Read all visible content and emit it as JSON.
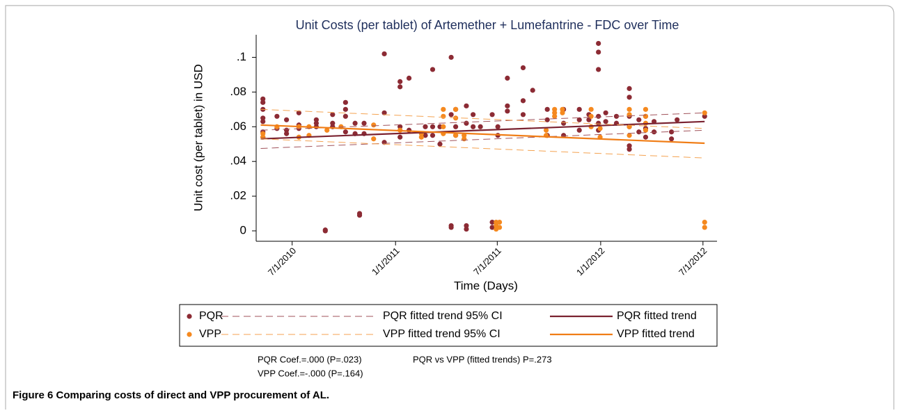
{
  "chart_data": {
    "type": "scatter",
    "title": "Unit Costs (per tablet) of Artemether + Lumefantrine - FDC over Time",
    "y_label": "Unit cost (per tablet) in USD",
    "x_label": "Time (Days)",
    "notes": [
      "PQR Coef.=.000 (P=.023)",
      "VPP Coef.=-.000 (P=.164)",
      "PQR vs VPP (fitted trends) P=.273"
    ],
    "caption": "Figure 6 Comparing costs of direct and VPP procurement of AL.",
    "xlim": [
      "2010-04-28",
      "2012-07-26"
    ],
    "xticks": [
      {
        "value": "2010-07-01",
        "label": "7/1/2010"
      },
      {
        "value": "2011-01-01",
        "label": "1/1/2011"
      },
      {
        "value": "2011-07-01",
        "label": "7/1/2011"
      },
      {
        "value": "2012-01-01",
        "label": "1/1/2012"
      },
      {
        "value": "2012-07-01",
        "label": "7/1/2012"
      }
    ],
    "ylim": [
      -0.006,
      0.113
    ],
    "yticks": [
      0,
      {
        "value": 0.02,
        "label": ".02"
      },
      {
        "value": 0.04,
        "label": ".04"
      },
      {
        "value": 0.06,
        "label": ".06"
      },
      {
        "value": 0.08,
        "label": ".08"
      },
      {
        "value": 0.1,
        "label": ".1"
      }
    ],
    "grid": false,
    "legend": "bottom",
    "series": [
      {
        "name": "PQR",
        "kind": "scatter",
        "color": "#8c2b34",
        "x": [
          "2010-05-10",
          "2010-05-10",
          "2010-05-10",
          "2010-05-10",
          "2010-05-10",
          "2010-05-10",
          "2010-05-10",
          "2010-06-04",
          "2010-06-04",
          "2010-06-21",
          "2010-06-21",
          "2010-06-21",
          "2010-07-13",
          "2010-07-13",
          "2010-07-13",
          "2010-08-13",
          "2010-08-13",
          "2010-08-13",
          "2010-08-29",
          "2010-08-29",
          "2010-09-11",
          "2010-09-11",
          "2010-09-11",
          "2010-10-04",
          "2010-10-04",
          "2010-10-04",
          "2010-10-04",
          "2010-10-21",
          "2010-10-21",
          "2010-10-29",
          "2010-10-29",
          "2010-11-06",
          "2010-11-06",
          "2010-12-12",
          "2010-12-12",
          "2010-12-12",
          "2011-01-09",
          "2011-01-09",
          "2011-01-09",
          "2011-01-09",
          "2011-01-25",
          "2011-01-25",
          "2011-02-23",
          "2011-02-23",
          "2011-03-08",
          "2011-03-08",
          "2011-03-08",
          "2011-03-21",
          "2011-03-21",
          "2011-04-10",
          "2011-04-10",
          "2011-04-10",
          "2011-04-10",
          "2011-04-18",
          "2011-04-18",
          "2011-04-18",
          "2011-05-07",
          "2011-05-07",
          "2011-05-07",
          "2011-05-07",
          "2011-05-19",
          "2011-05-19",
          "2011-06-01",
          "2011-06-22",
          "2011-06-22",
          "2011-06-22",
          "2011-07-02",
          "2011-07-02",
          "2011-07-19",
          "2011-07-19",
          "2011-07-19",
          "2011-08-16",
          "2011-08-16",
          "2011-08-16",
          "2011-09-02",
          "2011-09-28",
          "2011-09-28",
          "2011-09-28",
          "2011-10-27",
          "2011-10-27",
          "2011-10-27",
          "2011-11-24",
          "2011-11-24",
          "2011-11-24",
          "2011-12-11",
          "2011-12-11",
          "2011-12-28",
          "2011-12-28",
          "2011-12-28",
          "2011-12-28",
          "2011-12-28",
          "2011-12-28",
          "2012-01-10",
          "2012-01-10",
          "2012-01-29",
          "2012-01-29",
          "2012-02-21",
          "2012-02-21",
          "2012-02-21",
          "2012-02-21",
          "2012-02-21",
          "2012-02-21",
          "2012-03-09",
          "2012-03-09",
          "2012-03-21",
          "2012-03-21",
          "2012-03-21",
          "2012-04-05",
          "2012-04-05",
          "2012-05-06",
          "2012-05-06",
          "2012-05-16",
          "2012-07-04"
        ],
        "values": [
          0.076,
          0.074,
          0.07,
          0.065,
          0.063,
          0.057,
          0.054,
          0.066,
          0.059,
          0.064,
          0.058,
          0.056,
          0.068,
          0.061,
          0.059,
          0.064,
          0.062,
          0.06,
          0,
          0.0005,
          0.067,
          0.062,
          0.06,
          0.074,
          0.07,
          0.066,
          0.057,
          0.062,
          0.056,
          0.01,
          0.009,
          0.062,
          0.056,
          0.102,
          0.068,
          0.051,
          0.086,
          0.083,
          0.06,
          0.054,
          0.088,
          0.058,
          0.06,
          0.055,
          0.093,
          0.06,
          0.055,
          0.05,
          0.06,
          0.1,
          0.067,
          0.003,
          0.002,
          0.06,
          0.07,
          0.055,
          0.072,
          0.062,
          0.003,
          0.001,
          0.067,
          0.06,
          0.06,
          0.067,
          0.005,
          0.002,
          0.055,
          0.06,
          0.088,
          0.072,
          0.069,
          0.094,
          0.075,
          0.067,
          0.081,
          0.07,
          0.064,
          0.055,
          0.07,
          0.062,
          0.055,
          0.07,
          0.064,
          0.058,
          0.067,
          0.064,
          0.108,
          0.103,
          0.093,
          0.066,
          0.062,
          0.058,
          0.068,
          0.063,
          0.066,
          0.062,
          0.082,
          0.077,
          0.066,
          0.06,
          0.049,
          0.047,
          0.064,
          0.057,
          0.066,
          0.059,
          0.054,
          0.063,
          0.057,
          0.057,
          0.053,
          0.064,
          0.066
        ]
      },
      {
        "name": "PQR fitted trend 95% CI",
        "kind": "ci",
        "color": "#a0525a",
        "x": [
          "2010-05-06",
          "2012-07-04"
        ],
        "upper": [
          0.058,
          0.068
        ],
        "lower": [
          0.0475,
          0.058
        ]
      },
      {
        "name": "PQR fitted trend",
        "kind": "line",
        "color": "#7a2230",
        "x": [
          "2010-05-06",
          "2012-07-04"
        ],
        "values": [
          0.053,
          0.063
        ]
      },
      {
        "name": "VPP",
        "kind": "scatter",
        "color": "#f5891f",
        "x": [
          "2010-05-10",
          "2010-05-10",
          "2010-06-04",
          "2010-07-13",
          "2010-07-13",
          "2010-07-31",
          "2010-07-31",
          "2010-09-01",
          "2010-09-26",
          "2010-11-23",
          "2010-11-23",
          "2011-01-09",
          "2011-02-16",
          "2011-02-16",
          "2011-03-27",
          "2011-03-27",
          "2011-03-27",
          "2011-03-27",
          "2011-04-18",
          "2011-04-18",
          "2011-04-18",
          "2011-05-03",
          "2011-05-03",
          "2011-06-29",
          "2011-06-29",
          "2011-06-29",
          "2011-07-05",
          "2011-07-05",
          "2011-09-26",
          "2011-09-26",
          "2011-10-11",
          "2011-10-11",
          "2011-10-11",
          "2011-10-25",
          "2011-10-25",
          "2011-12-15",
          "2011-12-15",
          "2011-12-15",
          "2011-12-31",
          "2011-12-31",
          "2012-02-21",
          "2012-02-21",
          "2012-02-21",
          "2012-02-21",
          "2012-03-21",
          "2012-03-21",
          "2012-03-21",
          "2012-03-21",
          "2012-07-04",
          "2012-07-04",
          "2012-07-04"
        ],
        "values": [
          0.054,
          0.056,
          0.06,
          0.06,
          0.054,
          0.06,
          0.055,
          0.058,
          0.06,
          0.061,
          0.053,
          0.058,
          0.056,
          0.054,
          0.07,
          0.066,
          0.06,
          0.056,
          0.07,
          0.065,
          0.055,
          0.055,
          0.053,
          0.005,
          0.003,
          0.001,
          0.005,
          0.002,
          0.058,
          0.055,
          0.07,
          0.068,
          0.066,
          0.07,
          0.068,
          0.07,
          0.066,
          0.06,
          0.059,
          0.054,
          0.07,
          0.067,
          0.06,
          0.055,
          0.07,
          0.066,
          0.062,
          0.058,
          0.068,
          0.005,
          0.002
        ]
      },
      {
        "name": "VPP fitted trend 95% CI",
        "kind": "ci",
        "color": "#f4a250",
        "x": [
          "2010-05-06",
          "2012-07-04"
        ],
        "upper": [
          0.07,
          0.059
        ],
        "lower": [
          0.053,
          0.042
        ]
      },
      {
        "name": "VPP fitted trend",
        "kind": "line",
        "color": "#f07d16",
        "x": [
          "2010-05-06",
          "2012-07-04"
        ],
        "values": [
          0.061,
          0.0505
        ]
      }
    ]
  }
}
